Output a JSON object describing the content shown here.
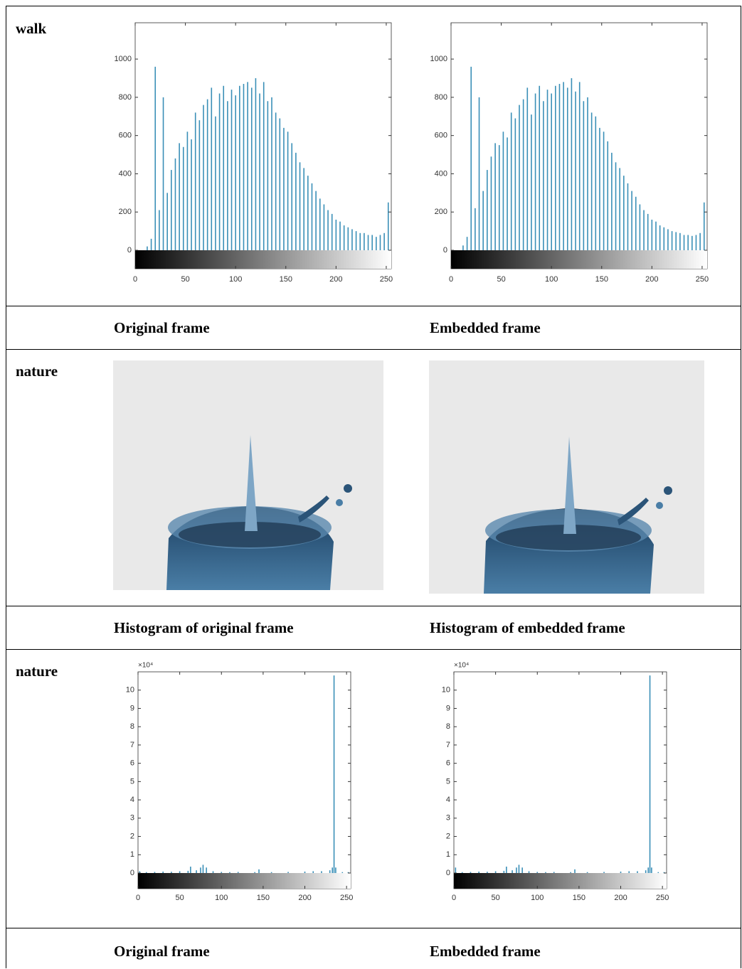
{
  "rows": [
    {
      "label": "walk",
      "charts": [
        {
          "type": "bar",
          "color": "#3a8fb7",
          "xlim": [
            0,
            255
          ],
          "ylim": [
            0,
            1190
          ],
          "xticks": [
            0,
            50,
            100,
            150,
            200,
            250
          ],
          "yticks": [
            0,
            200,
            400,
            600,
            800,
            1000
          ],
          "x": [
            12,
            16,
            20,
            24,
            28,
            32,
            36,
            40,
            44,
            48,
            52,
            56,
            60,
            64,
            68,
            72,
            76,
            80,
            84,
            88,
            92,
            96,
            100,
            104,
            108,
            112,
            116,
            120,
            124,
            128,
            132,
            136,
            140,
            144,
            148,
            152,
            156,
            160,
            164,
            168,
            172,
            176,
            180,
            184,
            188,
            192,
            196,
            200,
            204,
            208,
            212,
            216,
            220,
            224,
            228,
            232,
            236,
            240,
            244,
            248,
            252
          ],
          "values": [
            20,
            60,
            960,
            210,
            800,
            300,
            420,
            480,
            560,
            540,
            620,
            580,
            720,
            680,
            760,
            790,
            850,
            700,
            820,
            860,
            780,
            840,
            810,
            860,
            870,
            880,
            850,
            900,
            820,
            880,
            780,
            800,
            720,
            690,
            640,
            620,
            560,
            510,
            460,
            430,
            390,
            350,
            310,
            270,
            240,
            210,
            190,
            160,
            150,
            130,
            120,
            110,
            100,
            90,
            90,
            80,
            80,
            70,
            80,
            90,
            250
          ]
        },
        {
          "type": "bar",
          "color": "#3a8fb7",
          "xlim": [
            0,
            255
          ],
          "ylim": [
            0,
            1190
          ],
          "xticks": [
            0,
            50,
            100,
            150,
            200,
            250
          ],
          "yticks": [
            0,
            200,
            400,
            600,
            800,
            1000
          ],
          "x": [
            12,
            16,
            20,
            24,
            28,
            32,
            36,
            40,
            44,
            48,
            52,
            56,
            60,
            64,
            68,
            72,
            76,
            80,
            84,
            88,
            92,
            96,
            100,
            104,
            108,
            112,
            116,
            120,
            124,
            128,
            132,
            136,
            140,
            144,
            148,
            152,
            156,
            160,
            164,
            168,
            172,
            176,
            180,
            184,
            188,
            192,
            196,
            200,
            204,
            208,
            212,
            216,
            220,
            224,
            228,
            232,
            236,
            240,
            244,
            248,
            252
          ],
          "values": [
            25,
            70,
            960,
            220,
            800,
            310,
            420,
            490,
            560,
            550,
            620,
            590,
            720,
            690,
            760,
            790,
            850,
            710,
            820,
            860,
            780,
            840,
            820,
            860,
            870,
            880,
            850,
            900,
            830,
            880,
            780,
            800,
            720,
            700,
            640,
            620,
            570,
            510,
            460,
            430,
            390,
            350,
            310,
            280,
            240,
            210,
            190,
            160,
            150,
            130,
            120,
            110,
            100,
            95,
            90,
            80,
            80,
            75,
            80,
            90,
            250
          ]
        }
      ]
    },
    {
      "captions": [
        "Original frame",
        "Embedded frame"
      ]
    },
    {
      "label": "nature"
    },
    {
      "captions": [
        "Histogram of original frame",
        "Histogram of embedded frame"
      ]
    },
    {
      "label": "nature",
      "charts": [
        {
          "type": "bar",
          "color": "#3a8fb7",
          "xlim": [
            0,
            255
          ],
          "ylim": [
            0,
            11
          ],
          "y_exponent_label": "×10⁴",
          "xticks": [
            0,
            50,
            100,
            150,
            200,
            250
          ],
          "yticks": [
            0,
            1,
            2,
            3,
            4,
            5,
            6,
            7,
            8,
            9,
            10
          ],
          "x": [
            2,
            10,
            20,
            30,
            40,
            50,
            60,
            63,
            70,
            75,
            78,
            82,
            90,
            100,
            110,
            120,
            140,
            145,
            160,
            180,
            200,
            210,
            220,
            230,
            233,
            235,
            237,
            245,
            252
          ],
          "values": [
            0.1,
            0.05,
            0.06,
            0.08,
            0.07,
            0.1,
            0.12,
            0.35,
            0.15,
            0.3,
            0.45,
            0.3,
            0.1,
            0.06,
            0.05,
            0.06,
            0.05,
            0.2,
            0.05,
            0.06,
            0.08,
            0.1,
            0.1,
            0.15,
            0.3,
            10.8,
            0.3,
            0.05,
            0.05
          ]
        },
        {
          "type": "bar",
          "color": "#3a8fb7",
          "xlim": [
            0,
            255
          ],
          "ylim": [
            0,
            11
          ],
          "y_exponent_label": "×10⁴",
          "xticks": [
            0,
            50,
            100,
            150,
            200,
            250
          ],
          "yticks": [
            0,
            1,
            2,
            3,
            4,
            5,
            6,
            7,
            8,
            9,
            10
          ],
          "x": [
            2,
            10,
            20,
            30,
            40,
            50,
            60,
            63,
            70,
            75,
            78,
            82,
            90,
            100,
            110,
            120,
            140,
            145,
            160,
            180,
            200,
            210,
            220,
            230,
            233,
            235,
            237,
            245,
            252
          ],
          "values": [
            0.3,
            0.05,
            0.06,
            0.08,
            0.07,
            0.1,
            0.12,
            0.35,
            0.15,
            0.3,
            0.45,
            0.3,
            0.1,
            0.06,
            0.05,
            0.06,
            0.05,
            0.2,
            0.05,
            0.06,
            0.08,
            0.1,
            0.1,
            0.15,
            0.3,
            10.8,
            0.3,
            0.05,
            0.05
          ]
        }
      ]
    },
    {
      "captions": [
        "Original frame",
        "Embedded frame"
      ]
    }
  ]
}
